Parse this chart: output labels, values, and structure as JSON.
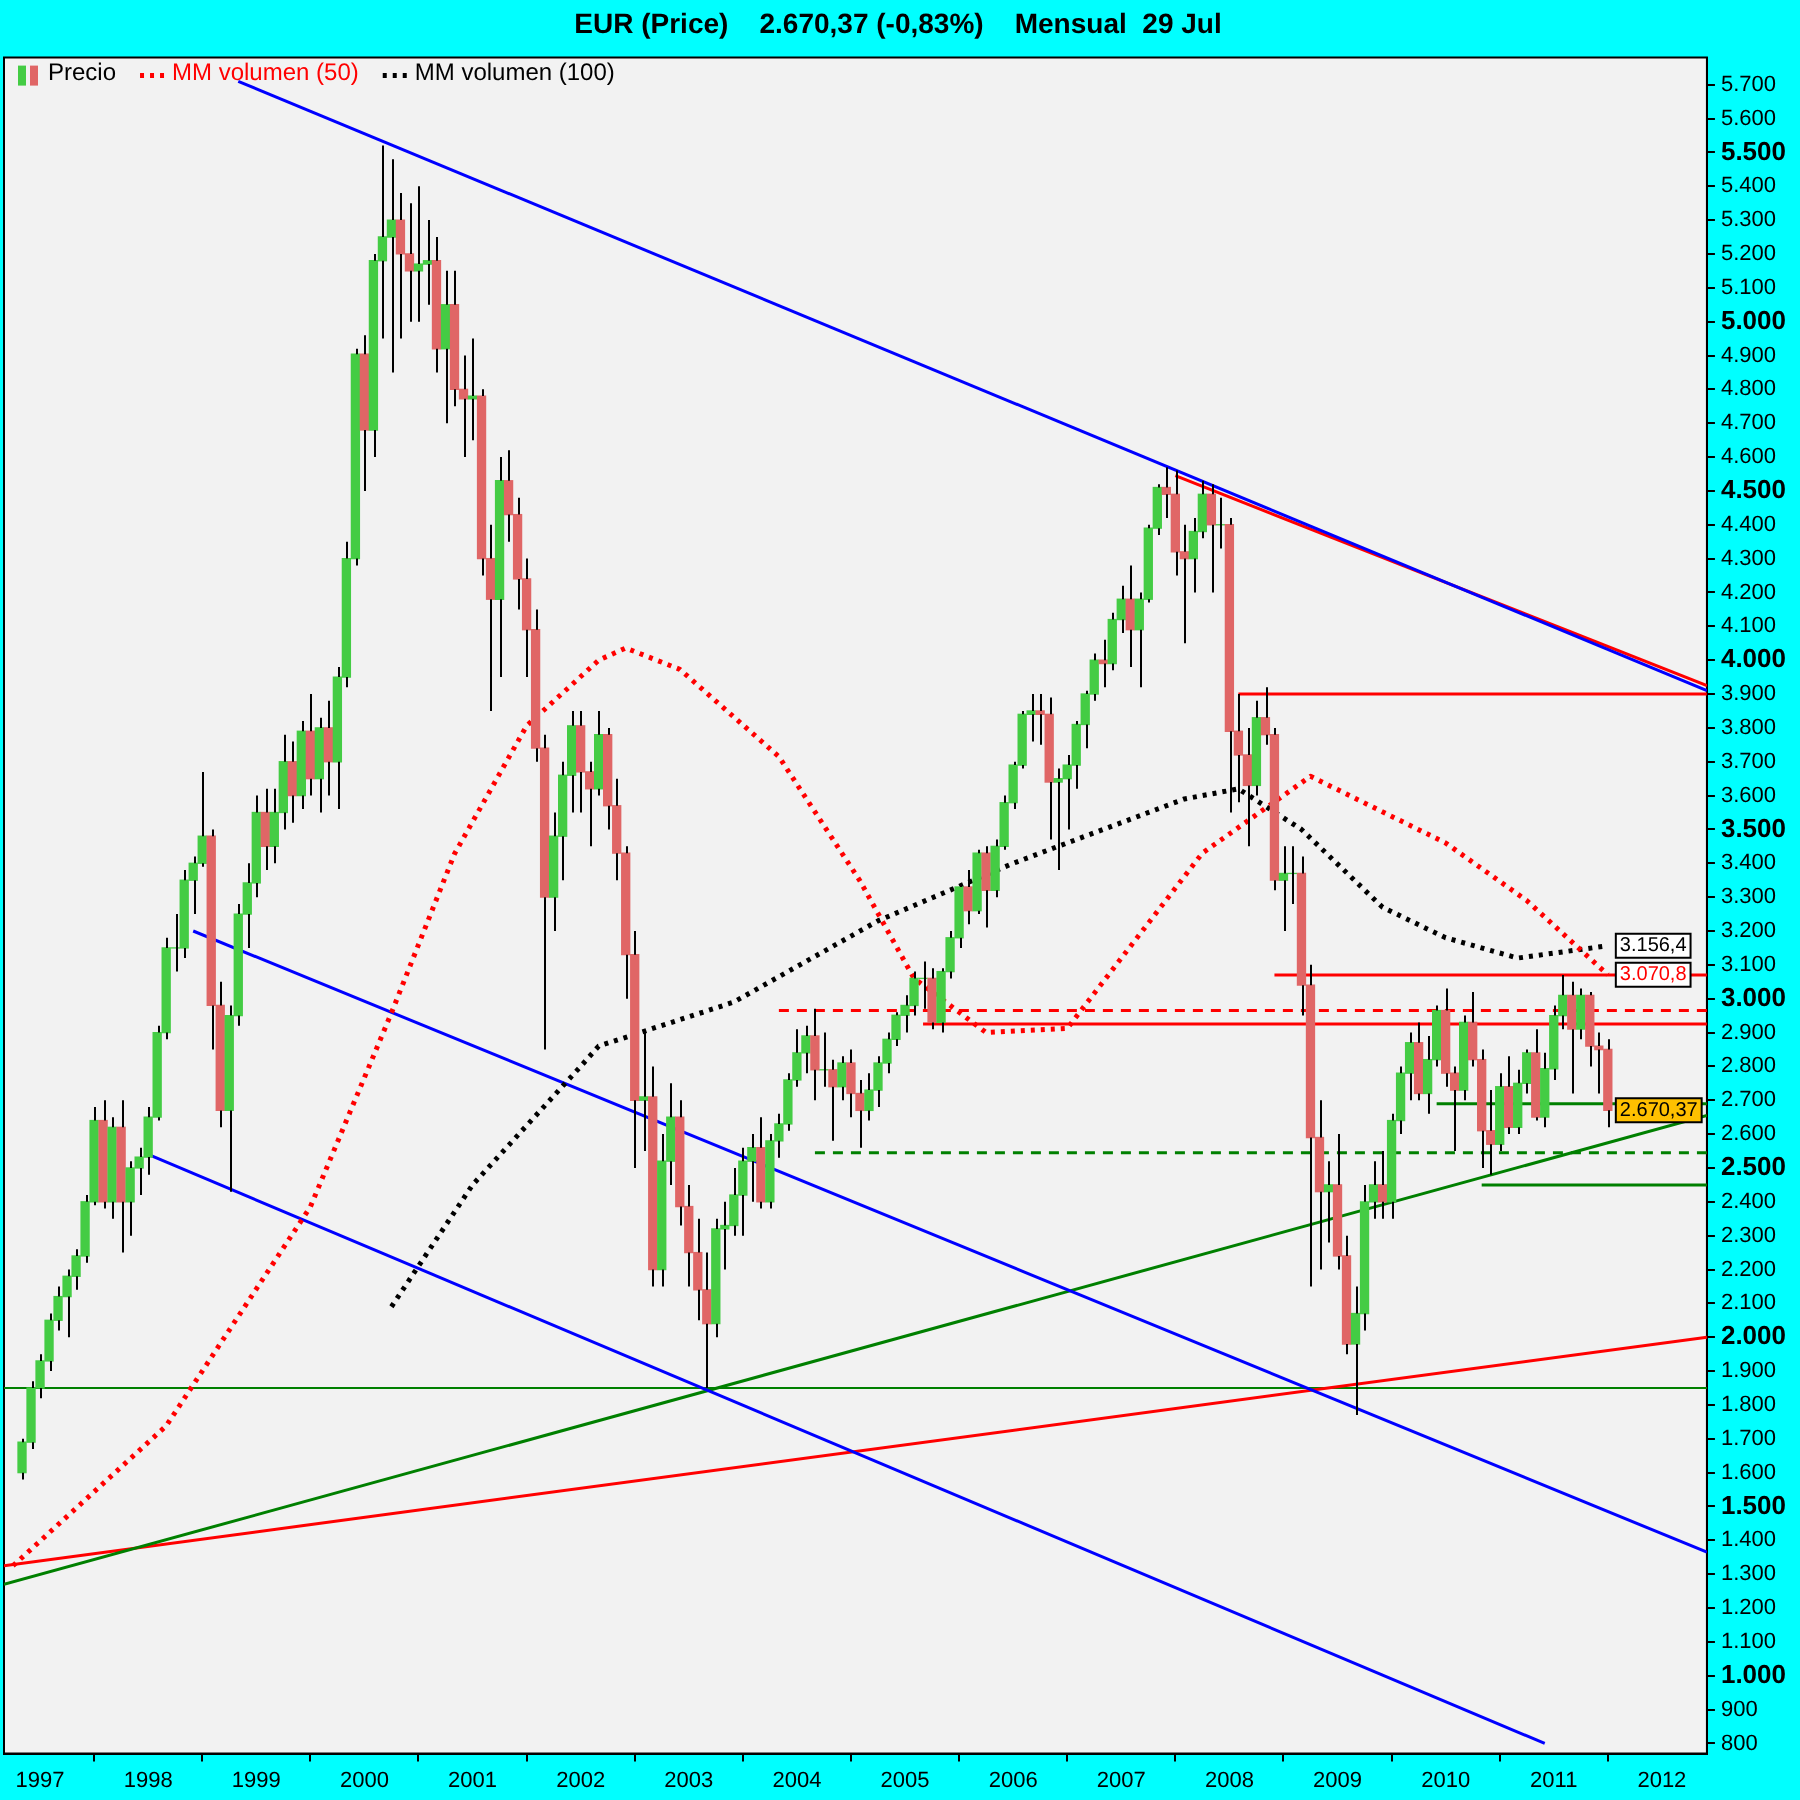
{
  "chart_data": {
    "type": "candlestick",
    "title": "EUR (Price)    2.670,37 (-0,83%)    Mensual  29 Jul",
    "legend": "top left",
    "xlim": [
      "1996-09",
      "2012-06"
    ],
    "xticks": [
      {
        "value": "1997-01",
        "label": "1997"
      },
      {
        "value": "1998-01",
        "label": "1998"
      },
      {
        "value": "1999-01",
        "label": "1999"
      },
      {
        "value": "2000-01",
        "label": "2000"
      },
      {
        "value": "2001-01",
        "label": "2001"
      },
      {
        "value": "2002-01",
        "label": "2002"
      },
      {
        "value": "2003-01",
        "label": "2003"
      },
      {
        "value": "2004-01",
        "label": "2004"
      },
      {
        "value": "2005-01",
        "label": "2005"
      },
      {
        "value": "2006-01",
        "label": "2006"
      },
      {
        "value": "2007-01",
        "label": "2007"
      },
      {
        "value": "2008-01",
        "label": "2008"
      },
      {
        "value": "2009-01",
        "label": "2009"
      },
      {
        "value": "2010-01",
        "label": "2010"
      },
      {
        "value": "2011-01",
        "label": "2011"
      },
      {
        "value": "2012-01",
        "label": "2012"
      }
    ],
    "ylim": [
      770,
      5780
    ],
    "yticks": [
      800,
      900,
      {
        "value": 1000,
        "label": "1.000"
      },
      {
        "value": 1100,
        "label": "1.100"
      },
      {
        "value": 1200,
        "label": "1.200"
      },
      {
        "value": 1300,
        "label": "1.300"
      },
      {
        "value": 1400,
        "label": "1.400"
      },
      {
        "value": 1500,
        "label": "1.500"
      },
      {
        "value": 1600,
        "label": "1.600"
      },
      {
        "value": 1700,
        "label": "1.700"
      },
      {
        "value": 1800,
        "label": "1.800"
      },
      {
        "value": 1900,
        "label": "1.900"
      },
      {
        "value": 2000,
        "label": "2.000"
      },
      {
        "value": 2100,
        "label": "2.100"
      },
      {
        "value": 2200,
        "label": "2.200"
      },
      {
        "value": 2300,
        "label": "2.300"
      },
      {
        "value": 2400,
        "label": "2.400"
      },
      {
        "value": 2500,
        "label": "2.500"
      },
      {
        "value": 2600,
        "label": "2.600"
      },
      {
        "value": 2700,
        "label": "2.700"
      },
      {
        "value": 2800,
        "label": "2.800"
      },
      {
        "value": 2900,
        "label": "2.900"
      },
      {
        "value": 3000,
        "label": "3.000"
      },
      {
        "value": 3100,
        "label": "3.100"
      },
      {
        "value": 3200,
        "label": "3.200"
      },
      {
        "value": 3300,
        "label": "3.300"
      },
      {
        "value": 3400,
        "label": "3.400"
      },
      {
        "value": 3500,
        "label": "3.500"
      },
      {
        "value": 3600,
        "label": "3.600"
      },
      {
        "value": 3700,
        "label": "3.700"
      },
      {
        "value": 3800,
        "label": "3.800"
      },
      {
        "value": 3900,
        "label": "3.900"
      },
      {
        "value": 4000,
        "label": "4.000"
      },
      {
        "value": 4100,
        "label": "4.100"
      },
      {
        "value": 4200,
        "label": "4.200"
      },
      {
        "value": 4300,
        "label": "4.300"
      },
      {
        "value": 4400,
        "label": "4.400"
      },
      {
        "value": 4500,
        "label": "4.500"
      },
      {
        "value": 4600,
        "label": "4.600"
      },
      {
        "value": 4700,
        "label": "4.700"
      },
      {
        "value": 4800,
        "label": "4.800"
      },
      {
        "value": 4900,
        "label": "4.900"
      },
      {
        "value": 5000,
        "label": "5.000"
      },
      {
        "value": 5100,
        "label": "5.100"
      },
      {
        "value": 5200,
        "label": "5.200"
      },
      {
        "value": 5300,
        "label": "5.300"
      },
      {
        "value": 5400,
        "label": "5.400"
      },
      {
        "value": 5500,
        "label": "5.500"
      },
      {
        "value": 5600,
        "label": "5.600"
      },
      {
        "value": 5700,
        "label": "5.700"
      }
    ],
    "ref_lines": [
      {
        "axis": "y",
        "value": 1850,
        "color": "#008000"
      }
    ],
    "annotations": [
      {
        "text": "3.156,4",
        "x": "2011-07",
        "y": 3156.4
      },
      {
        "text": "3.070,8",
        "x": "2011-07",
        "y": 3070.8
      },
      {
        "text": "2.670,37",
        "x": "2011-07",
        "y": 2670.37
      }
    ],
    "series": [
      {
        "name": "Precio",
        "type": "candlestick",
        "x": [
          "1996-11",
          "1996-12",
          "1997-01",
          "1997-02",
          "1997-03",
          "1997-04",
          "1997-05",
          "1997-06",
          "1997-07",
          "1997-08",
          "1997-09",
          "1997-10",
          "1997-11",
          "1997-12",
          "1998-01",
          "1998-02",
          "1998-03",
          "1998-04",
          "1998-05",
          "1998-06",
          "1998-07",
          "1998-08",
          "1998-09",
          "1998-10",
          "1998-11",
          "1998-12",
          "1999-01",
          "1999-02",
          "1999-03",
          "1999-04",
          "1999-05",
          "1999-06",
          "1999-07",
          "1999-08",
          "1999-09",
          "1999-10",
          "1999-11",
          "1999-12",
          "2000-01",
          "2000-02",
          "2000-03",
          "2000-04",
          "2000-05",
          "2000-06",
          "2000-07",
          "2000-08",
          "2000-09",
          "2000-10",
          "2000-11",
          "2000-12",
          "2001-01",
          "2001-02",
          "2001-03",
          "2001-04",
          "2001-05",
          "2001-06",
          "2001-07",
          "2001-08",
          "2001-09",
          "2001-10",
          "2001-11",
          "2001-12",
          "2002-01",
          "2002-02",
          "2002-03",
          "2002-04",
          "2002-05",
          "2002-06",
          "2002-07",
          "2002-08",
          "2002-09",
          "2002-10",
          "2002-11",
          "2002-12",
          "2003-01",
          "2003-02",
          "2003-03",
          "2003-04",
          "2003-05",
          "2003-06",
          "2003-07",
          "2003-08",
          "2003-09",
          "2003-10",
          "2003-11",
          "2003-12",
          "2004-01",
          "2004-02",
          "2004-03",
          "2004-04",
          "2004-05",
          "2004-06",
          "2004-07",
          "2004-08",
          "2004-09",
          "2004-10",
          "2004-11",
          "2004-12",
          "2005-01",
          "2005-02",
          "2005-03",
          "2005-04",
          "2005-05",
          "2005-06",
          "2005-07",
          "2005-08",
          "2005-09",
          "2005-10",
          "2005-11",
          "2005-12",
          "2006-01",
          "2006-02",
          "2006-03",
          "2006-04",
          "2006-05",
          "2006-06",
          "2006-07",
          "2006-08",
          "2006-09",
          "2006-10",
          "2006-11",
          "2006-12",
          "2007-01",
          "2007-02",
          "2007-03",
          "2007-04",
          "2007-05",
          "2007-06",
          "2007-07",
          "2007-08",
          "2007-09",
          "2007-10",
          "2007-11",
          "2007-12",
          "2008-01",
          "2008-02",
          "2008-03",
          "2008-04",
          "2008-05",
          "2008-06",
          "2008-07",
          "2008-08",
          "2008-09",
          "2008-10",
          "2008-11",
          "2008-12",
          "2009-01",
          "2009-02",
          "2009-03",
          "2009-04",
          "2009-05",
          "2009-06",
          "2009-07",
          "2009-08",
          "2009-09",
          "2009-10",
          "2009-11",
          "2009-12",
          "2010-01",
          "2010-02",
          "2010-03",
          "2010-04",
          "2010-05",
          "2010-06",
          "2010-07",
          "2010-08",
          "2010-09",
          "2010-10",
          "2010-11",
          "2010-12",
          "2011-01",
          "2011-02",
          "2011-03",
          "2011-04",
          "2011-05",
          "2011-06",
          "2011-07"
        ],
        "ohlc": [
          [
            1600,
            1700,
            1580,
            1690
          ],
          [
            1690,
            1870,
            1670,
            1850
          ],
          [
            1850,
            1950,
            1820,
            1930
          ],
          [
            1930,
            2070,
            1900,
            2050
          ],
          [
            2050,
            2150,
            2020,
            2120
          ],
          [
            2120,
            2200,
            2000,
            2180
          ],
          [
            2180,
            2260,
            2140,
            2240
          ],
          [
            2240,
            2420,
            2220,
            2400
          ],
          [
            2400,
            2680,
            2390,
            2640
          ],
          [
            2640,
            2700,
            2380,
            2400
          ],
          [
            2400,
            2650,
            2350,
            2620
          ],
          [
            2620,
            2700,
            2250,
            2400
          ],
          [
            2400,
            2520,
            2300,
            2500
          ],
          [
            2500,
            2560,
            2420,
            2532
          ],
          [
            2532,
            2680,
            2480,
            2650
          ],
          [
            2650,
            2920,
            2640,
            2900
          ],
          [
            2900,
            3180,
            2880,
            3150
          ],
          [
            3150,
            3250,
            3080,
            3150
          ],
          [
            3150,
            3380,
            3120,
            3350
          ],
          [
            3350,
            3420,
            3250,
            3400
          ],
          [
            3400,
            3670,
            3390,
            3480
          ],
          [
            3480,
            3500,
            2850,
            2980
          ],
          [
            2980,
            3050,
            2620,
            2670
          ],
          [
            2670,
            2980,
            2430,
            2950
          ],
          [
            2950,
            3280,
            2920,
            3250
          ],
          [
            3250,
            3400,
            3150,
            3342
          ],
          [
            3342,
            3600,
            3300,
            3550
          ],
          [
            3550,
            3620,
            3380,
            3450
          ],
          [
            3450,
            3620,
            3400,
            3550
          ],
          [
            3550,
            3780,
            3500,
            3700
          ],
          [
            3700,
            3760,
            3520,
            3600
          ],
          [
            3600,
            3820,
            3560,
            3790
          ],
          [
            3790,
            3900,
            3600,
            3650
          ],
          [
            3650,
            3830,
            3550,
            3800
          ],
          [
            3800,
            3880,
            3600,
            3700
          ],
          [
            3700,
            3980,
            3560,
            3950
          ],
          [
            3950,
            4350,
            3920,
            4300
          ],
          [
            4300,
            4920,
            4280,
            4904
          ],
          [
            4904,
            4960,
            4500,
            4680
          ],
          [
            4680,
            5200,
            4600,
            5180
          ],
          [
            5180,
            5520,
            4950,
            5250
          ],
          [
            5250,
            5480,
            4850,
            5300
          ],
          [
            5300,
            5380,
            4950,
            5200
          ],
          [
            5200,
            5350,
            5000,
            5150
          ],
          [
            5150,
            5400,
            5000,
            5170
          ],
          [
            5170,
            5300,
            5050,
            5180
          ],
          [
            5180,
            5250,
            4850,
            4920
          ],
          [
            4920,
            5150,
            4700,
            5050
          ],
          [
            5050,
            5150,
            4750,
            4800
          ],
          [
            4800,
            4900,
            4600,
            4772
          ],
          [
            4772,
            4950,
            4650,
            4780
          ],
          [
            4780,
            4800,
            4250,
            4300
          ],
          [
            4300,
            4400,
            3850,
            4180
          ],
          [
            4180,
            4600,
            3950,
            4530
          ],
          [
            4530,
            4620,
            4350,
            4430
          ],
          [
            4430,
            4480,
            4150,
            4240
          ],
          [
            4240,
            4300,
            3950,
            4090
          ],
          [
            4090,
            4150,
            3700,
            3740
          ],
          [
            3740,
            3780,
            2850,
            3300
          ],
          [
            3300,
            3550,
            3200,
            3480
          ],
          [
            3480,
            3700,
            3350,
            3660
          ],
          [
            3660,
            3850,
            3550,
            3806
          ],
          [
            3806,
            3850,
            3550,
            3670
          ],
          [
            3670,
            3700,
            3450,
            3620
          ],
          [
            3620,
            3850,
            3600,
            3780
          ],
          [
            3780,
            3800,
            3500,
            3570
          ],
          [
            3570,
            3650,
            3350,
            3430
          ],
          [
            3430,
            3450,
            3000,
            3130
          ],
          [
            3130,
            3200,
            2500,
            2700
          ],
          [
            2700,
            2900,
            2550,
            2710
          ],
          [
            2710,
            2800,
            2150,
            2200
          ],
          [
            2200,
            2600,
            2150,
            2520
          ],
          [
            2520,
            2750,
            2450,
            2650
          ],
          [
            2650,
            2700,
            2330,
            2386
          ],
          [
            2386,
            2450,
            2150,
            2250
          ],
          [
            2250,
            2350,
            2050,
            2140
          ],
          [
            2140,
            2250,
            1850,
            2040
          ],
          [
            2040,
            2350,
            2000,
            2320
          ],
          [
            2320,
            2400,
            2200,
            2330
          ],
          [
            2330,
            2500,
            2300,
            2420
          ],
          [
            2420,
            2560,
            2300,
            2520
          ],
          [
            2520,
            2600,
            2400,
            2560
          ],
          [
            2560,
            2650,
            2380,
            2400
          ],
          [
            2400,
            2600,
            2380,
            2580
          ],
          [
            2580,
            2660,
            2530,
            2630
          ],
          [
            2630,
            2780,
            2610,
            2760
          ],
          [
            2760,
            2910,
            2740,
            2840
          ],
          [
            2840,
            2920,
            2780,
            2890
          ],
          [
            2890,
            2970,
            2700,
            2790
          ],
          [
            2790,
            2900,
            2740,
            2790
          ],
          [
            2790,
            2820,
            2580,
            2740
          ],
          [
            2740,
            2830,
            2700,
            2810
          ],
          [
            2810,
            2850,
            2650,
            2720
          ],
          [
            2720,
            2760,
            2560,
            2670
          ],
          [
            2670,
            2780,
            2640,
            2730
          ],
          [
            2730,
            2830,
            2680,
            2810
          ],
          [
            2810,
            2900,
            2780,
            2880
          ],
          [
            2880,
            2960,
            2860,
            2951
          ],
          [
            2951,
            3010,
            2900,
            2980
          ],
          [
            2980,
            3080,
            2950,
            3060
          ],
          [
            3060,
            3110,
            2970,
            3060
          ],
          [
            3060,
            3090,
            2910,
            2930
          ],
          [
            2930,
            3090,
            2900,
            3080
          ],
          [
            3080,
            3200,
            3060,
            3180
          ],
          [
            3180,
            3340,
            3150,
            3330
          ],
          [
            3330,
            3380,
            3220,
            3260
          ],
          [
            3260,
            3440,
            3250,
            3430
          ],
          [
            3430,
            3450,
            3210,
            3320
          ],
          [
            3320,
            3470,
            3300,
            3450
          ],
          [
            3450,
            3600,
            3440,
            3579
          ],
          [
            3579,
            3700,
            3560,
            3690
          ],
          [
            3690,
            3850,
            3680,
            3840
          ],
          [
            3840,
            3900,
            3760,
            3850
          ],
          [
            3850,
            3900,
            3750,
            3840
          ],
          [
            3840,
            3890,
            3470,
            3640
          ],
          [
            3640,
            3680,
            3380,
            3650
          ],
          [
            3650,
            3720,
            3500,
            3690
          ],
          [
            3690,
            3820,
            3620,
            3810
          ],
          [
            3810,
            3910,
            3740,
            3900
          ],
          [
            3900,
            4020,
            3880,
            4000
          ],
          [
            4000,
            4060,
            3920,
            3990
          ],
          [
            3990,
            4140,
            3970,
            4120
          ],
          [
            4120,
            4220,
            4080,
            4180
          ],
          [
            4180,
            4280,
            3980,
            4090
          ],
          [
            4090,
            4200,
            3920,
            4180
          ],
          [
            4180,
            4400,
            4170,
            4390
          ],
          [
            4390,
            4520,
            4370,
            4510
          ],
          [
            4510,
            4570,
            4420,
            4490
          ],
          [
            4490,
            4560,
            4250,
            4320
          ],
          [
            4320,
            4400,
            4050,
            4300
          ],
          [
            4300,
            4420,
            4200,
            4380
          ],
          [
            4380,
            4530,
            4360,
            4490
          ],
          [
            4490,
            4520,
            4200,
            4400
          ],
          [
            4400,
            4480,
            4330,
            4400
          ],
          [
            4400,
            4420,
            3550,
            3790
          ],
          [
            3790,
            3900,
            3580,
            3720
          ],
          [
            3720,
            3800,
            3450,
            3630
          ],
          [
            3630,
            3880,
            3600,
            3830
          ],
          [
            3830,
            3920,
            3750,
            3780
          ],
          [
            3780,
            3800,
            3320,
            3350
          ],
          [
            3350,
            3450,
            3200,
            3370
          ],
          [
            3370,
            3450,
            3280,
            3370
          ],
          [
            3370,
            3420,
            2950,
            3040
          ],
          [
            3040,
            3100,
            2150,
            2590
          ],
          [
            2590,
            2700,
            2200,
            2430
          ],
          [
            2430,
            2520,
            2280,
            2450
          ],
          [
            2450,
            2600,
            2200,
            2240
          ],
          [
            2240,
            2300,
            1950,
            1980
          ],
          [
            1980,
            2150,
            1770,
            2070
          ],
          [
            2070,
            2450,
            2020,
            2400
          ],
          [
            2400,
            2520,
            2350,
            2450
          ],
          [
            2450,
            2550,
            2350,
            2400
          ],
          [
            2400,
            2660,
            2350,
            2640
          ],
          [
            2640,
            2800,
            2600,
            2780
          ],
          [
            2780,
            2900,
            2700,
            2870
          ],
          [
            2870,
            2930,
            2700,
            2720
          ],
          [
            2720,
            2890,
            2660,
            2820
          ],
          [
            2820,
            2980,
            2800,
            2965
          ],
          [
            2965,
            3030,
            2740,
            2780
          ],
          [
            2780,
            2800,
            2550,
            2730
          ],
          [
            2730,
            2950,
            2700,
            2930
          ],
          [
            2930,
            3020,
            2800,
            2820
          ],
          [
            2820,
            2850,
            2500,
            2610
          ],
          [
            2610,
            2730,
            2480,
            2570
          ],
          [
            2570,
            2780,
            2550,
            2740
          ],
          [
            2740,
            2830,
            2600,
            2620
          ],
          [
            2620,
            2790,
            2600,
            2750
          ],
          [
            2750,
            2850,
            2720,
            2840
          ],
          [
            2840,
            2910,
            2640,
            2650
          ],
          [
            2650,
            2840,
            2620,
            2793
          ],
          [
            2793,
            2980,
            2760,
            2950
          ],
          [
            2950,
            3070,
            2910,
            3010
          ],
          [
            3010,
            3050,
            2720,
            2910
          ],
          [
            2910,
            3030,
            2880,
            3010
          ],
          [
            3010,
            3020,
            2800,
            2860
          ],
          [
            2860,
            2900,
            2720,
            2850
          ],
          [
            2850,
            2880,
            2620,
            2670.37
          ]
        ]
      },
      {
        "name": "MM volumen (50)",
        "type": "line",
        "color": "#ff0000",
        "line_style": "dotted",
        "x": [
          "1996-10",
          "1998-03",
          "1999-07",
          "2000-04",
          "2000-11",
          "2001-07",
          "2002-03",
          "2002-06",
          "2002-12",
          "2003-11",
          "2004-08",
          "2005-02",
          "2005-10",
          "2006-07",
          "2006-12",
          "2007-10",
          "2008-10",
          "2010-01",
          "2010-10",
          "2011-07"
        ],
        "values": [
          1325,
          1738,
          2385,
          2958,
          3428,
          3806,
          4000,
          4036,
          3973,
          3715,
          3348,
          3060,
          2900,
          2912,
          3085,
          3430,
          3657,
          3460,
          3290,
          3070.8
        ]
      },
      {
        "name": "MM volumen (100)",
        "type": "line",
        "color": "#000000",
        "line_style": "dotted",
        "x": [
          "2000-04",
          "2001-01",
          "2002-01",
          "2002-03",
          "2003-06",
          "2004-10",
          "2006-01",
          "2007-08",
          "2008-02",
          "2008-09",
          "2009-06",
          "2010-01",
          "2010-09",
          "2011-07"
        ],
        "values": [
          2090,
          2450,
          2800,
          2860,
          2990,
          3230,
          3400,
          3590,
          3620,
          3500,
          3270,
          3180,
          3120,
          3156.4
        ]
      },
      {
        "type": "line",
        "color": "#0000ff",
        "x": [
          "1998-11",
          "2012-06"
        ],
        "values": [
          5710,
          3910
        ]
      },
      {
        "type": "line",
        "color": "#ff0000",
        "x": [
          "2007-07",
          "2012-06"
        ],
        "values": [
          4545,
          3925
        ]
      },
      {
        "type": "line",
        "color": "#0000ff",
        "x": [
          "1998-01",
          "2010-12"
        ],
        "values": [
          2540,
          800
        ]
      },
      {
        "type": "line",
        "color": "#0000ff",
        "x": [
          "1998-06",
          "2012-06"
        ],
        "values": [
          3200,
          1365
        ]
      },
      {
        "type": "line",
        "color": "#008000",
        "x": [
          "1996-09",
          "2012-06"
        ],
        "values": [
          1270,
          2655
        ]
      },
      {
        "type": "line",
        "color": "#ff0000",
        "x": [
          "1996-09",
          "2012-06"
        ],
        "values": [
          1325,
          2000
        ]
      },
      {
        "type": "line",
        "color": "#ff0000",
        "x": [
          "2008-02",
          "2012-06"
        ],
        "values": [
          3900,
          3900
        ]
      },
      {
        "type": "line",
        "color": "#ff0000",
        "x": [
          "2008-06",
          "2012-06"
        ],
        "values": [
          3070,
          3070
        ]
      },
      {
        "type": "line",
        "color": "#ff0000",
        "line_style": "dashed",
        "x": [
          "2003-11",
          "2012-06"
        ],
        "values": [
          2965,
          2965
        ]
      },
      {
        "type": "line",
        "color": "#ff0000",
        "x": [
          "2005-03",
          "2012-06"
        ],
        "values": [
          2925,
          2925
        ]
      },
      {
        "type": "line",
        "color": "#008000",
        "x": [
          "2009-12",
          "2012-06"
        ],
        "values": [
          2690,
          2690
        ]
      },
      {
        "type": "line",
        "color": "#008000",
        "line_style": "dashed",
        "x": [
          "2004-03",
          "2012-06"
        ],
        "values": [
          2545,
          2545
        ]
      },
      {
        "type": "line",
        "color": "#008000",
        "x": [
          "2010-05",
          "2012-06"
        ],
        "values": [
          2450,
          2450
        ]
      }
    ]
  }
}
